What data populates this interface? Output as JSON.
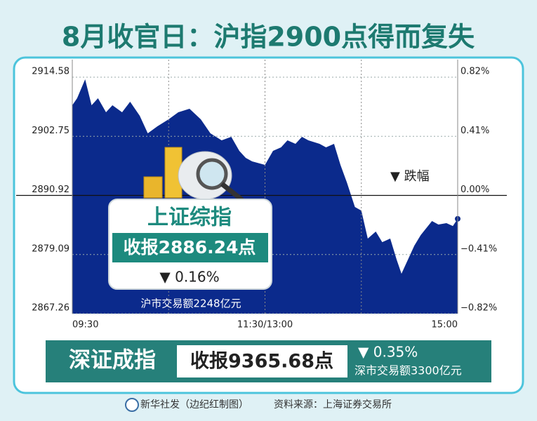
{
  "chart_data": {
    "type": "area",
    "title": "8月收官日：沪指2900点得而复失",
    "x": [
      0,
      3,
      8,
      12,
      16,
      21,
      25,
      31,
      36,
      42,
      47,
      53,
      60,
      66,
      73,
      80,
      86,
      93,
      99,
      104,
      108,
      112,
      120,
      125,
      130,
      134,
      139,
      143,
      147,
      154,
      158,
      163,
      167,
      171,
      176,
      180,
      184,
      189,
      193,
      198,
      202,
      205,
      209,
      213,
      217,
      224,
      228,
      233,
      237,
      240
    ],
    "values": [
      2908.96,
      2910.37,
      2914.16,
      2908.96,
      2910.37,
      2907.56,
      2908.96,
      2907.56,
      2909.66,
      2906.86,
      2903.34,
      2904.75,
      2906.15,
      2907.56,
      2908.26,
      2906.15,
      2903.34,
      2901.94,
      2902.64,
      2899.83,
      2898.43,
      2897.73,
      2897.02,
      2899.83,
      2900.54,
      2901.94,
      2901.24,
      2902.64,
      2901.94,
      2901.24,
      2900.54,
      2901.24,
      2897.02,
      2893.51,
      2888.6,
      2887.89,
      2882.28,
      2883.68,
      2881.57,
      2882.28,
      2878.06,
      2875.25,
      2878.06,
      2880.87,
      2882.98,
      2885.79,
      2885.09,
      2885.37,
      2884.8,
      2886.24
    ],
    "color": "#0b2a8c",
    "xlim": [
      0,
      240
    ],
    "xticks": [
      {
        "value": 0,
        "label": "09:30"
      },
      {
        "value": 120,
        "label": "11:30/13:00"
      },
      {
        "value": 240,
        "label": "15:00"
      }
    ],
    "ylim": [
      2867.26,
      2914.58
    ],
    "yticks": [
      2867.26,
      2879.09,
      2890.92,
      2902.75,
      2914.58
    ],
    "y2lim": [
      -0.82,
      0.82
    ],
    "y2ticks": [
      {
        "value": -0.82,
        "label": "−0.82%"
      },
      {
        "value": -0.41,
        "label": "−0.41%"
      },
      {
        "value": 0,
        "label": "0.00%"
      },
      {
        "value": 0.41,
        "label": "0.41%"
      },
      {
        "value": 0.82,
        "label": "0.82%"
      }
    ],
    "grid": true,
    "annotation": "▼ 跌幅"
  },
  "shanghai": {
    "name": "上证综指",
    "close": "收报2886.24点",
    "change": "▼ 0.16%",
    "turnover": "沪市交易额2248亿元"
  },
  "shenzhen": {
    "name": "深证成指",
    "close": "收报9365.68点",
    "change": "▼ 0.35%",
    "turnover": "深市交易额3300亿元"
  },
  "footer": {
    "credit": "新华社发（边纪红制图）",
    "source": "资料来源：上海证券交易所"
  }
}
